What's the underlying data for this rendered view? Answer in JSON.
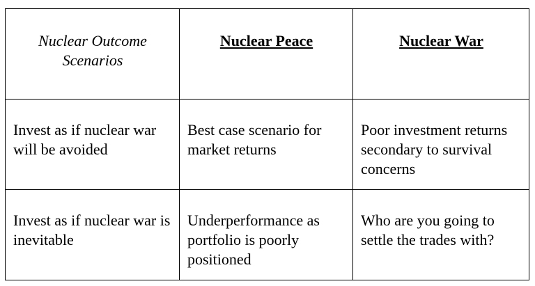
{
  "header": {
    "corner": "Nuclear Outcome Scenarios",
    "col1": "Nuclear Peace",
    "col2": "Nuclear War"
  },
  "rows": [
    {
      "label": "Invest as if nuclear war will be avoided",
      "peace": "Best case scenario for market returns",
      "war": "Poor investment returns secondary to survival concerns"
    },
    {
      "label": "Invest as if nuclear war is inevitable",
      "peace": "Underperformance as portfolio is poorly positioned",
      "war": "Who are you going to settle the trades with?"
    }
  ]
}
